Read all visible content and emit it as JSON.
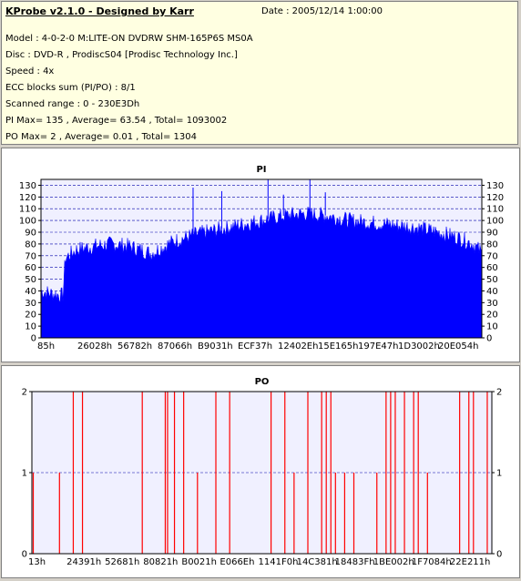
{
  "header": {
    "title": "KProbe v2.1.0 - Designed by Karr",
    "date": "Date : 2005/12/14 1:00:00",
    "lines": [
      "Model : 4-0-2-0 M:LITE-ON DVDRW SHM-165P6S MS0A",
      "Disc : DVD-R , ProdiscS04   [Prodisc Technology Inc.]",
      "Speed : 4x",
      "ECC blocks sum (PI/PO) : 8/1",
      "Scanned range : 0 - 230E3Dh",
      "PI Max= 135 , Average= 63.54 , Total= 1093002",
      "PO Max= 2 , Average= 0.01 , Total= 1304"
    ]
  },
  "colors": {
    "bar_pi": "#0000ff",
    "bar_po": "#ff0000",
    "grid": "#0000aa",
    "plot_bg": "#f0f0ff"
  },
  "chart_data": [
    {
      "type": "area",
      "title": "PI",
      "ylim": [
        0,
        135
      ],
      "yticks": [
        0,
        10,
        20,
        30,
        40,
        50,
        60,
        70,
        80,
        90,
        100,
        110,
        120,
        130
      ],
      "xtick_labels": [
        "85h",
        "26028h",
        "56782h",
        "87066h",
        "B9031h",
        "ECF37h",
        "12402Eh",
        "15E165h",
        "197E47h",
        "1D3002h",
        "20E054h"
      ],
      "grid": true,
      "series": [
        {
          "x": [
            0,
            0.02,
            0.05,
            0.055,
            0.08,
            0.12,
            0.16,
            0.2,
            0.25,
            0.3,
            0.35,
            0.4,
            0.45,
            0.5,
            0.55,
            0.6,
            0.65,
            0.7,
            0.75,
            0.8,
            0.85,
            0.9,
            0.95,
            0.98,
            1.0
          ],
          "values": [
            40,
            38,
            36,
            68,
            75,
            78,
            80,
            78,
            72,
            82,
            88,
            92,
            96,
            100,
            104,
            106,
            104,
            100,
            98,
            96,
            94,
            90,
            85,
            80,
            72
          ]
        }
      ],
      "spikes": [
        {
          "x": 0.515,
          "value": 135
        },
        {
          "x": 0.61,
          "value": 135
        },
        {
          "x": 0.345,
          "value": 128
        },
        {
          "x": 0.41,
          "value": 125
        },
        {
          "x": 0.55,
          "value": 122
        },
        {
          "x": 0.645,
          "value": 124
        }
      ]
    },
    {
      "type": "bar",
      "title": "PO",
      "ylim": [
        0,
        2
      ],
      "yticks": [
        0,
        1,
        2
      ],
      "xtick_labels": [
        "13h",
        "24391h",
        "52681h",
        "80821h",
        "B0021h",
        "E066Eh",
        "1141F0h",
        "14C381h",
        "18483Fh",
        "1BE002h",
        "1F7084h",
        "22E211h"
      ],
      "grid": true,
      "events": [
        {
          "x": 0.003,
          "value": 1
        },
        {
          "x": 0.06,
          "value": 1
        },
        {
          "x": 0.09,
          "value": 2
        },
        {
          "x": 0.11,
          "value": 2
        },
        {
          "x": 0.24,
          "value": 2
        },
        {
          "x": 0.29,
          "value": 2
        },
        {
          "x": 0.295,
          "value": 2
        },
        {
          "x": 0.31,
          "value": 2
        },
        {
          "x": 0.33,
          "value": 2
        },
        {
          "x": 0.36,
          "value": 1
        },
        {
          "x": 0.4,
          "value": 2
        },
        {
          "x": 0.43,
          "value": 2
        },
        {
          "x": 0.52,
          "value": 2
        },
        {
          "x": 0.55,
          "value": 2
        },
        {
          "x": 0.57,
          "value": 1
        },
        {
          "x": 0.6,
          "value": 2
        },
        {
          "x": 0.63,
          "value": 2
        },
        {
          "x": 0.64,
          "value": 2
        },
        {
          "x": 0.65,
          "value": 2
        },
        {
          "x": 0.66,
          "value": 1
        },
        {
          "x": 0.68,
          "value": 1
        },
        {
          "x": 0.7,
          "value": 1
        },
        {
          "x": 0.75,
          "value": 1
        },
        {
          "x": 0.77,
          "value": 2
        },
        {
          "x": 0.78,
          "value": 2
        },
        {
          "x": 0.79,
          "value": 2
        },
        {
          "x": 0.81,
          "value": 2
        },
        {
          "x": 0.83,
          "value": 2
        },
        {
          "x": 0.84,
          "value": 2
        },
        {
          "x": 0.86,
          "value": 1
        },
        {
          "x": 0.93,
          "value": 2
        },
        {
          "x": 0.95,
          "value": 2
        },
        {
          "x": 0.96,
          "value": 2
        },
        {
          "x": 0.99,
          "value": 2
        }
      ]
    }
  ]
}
